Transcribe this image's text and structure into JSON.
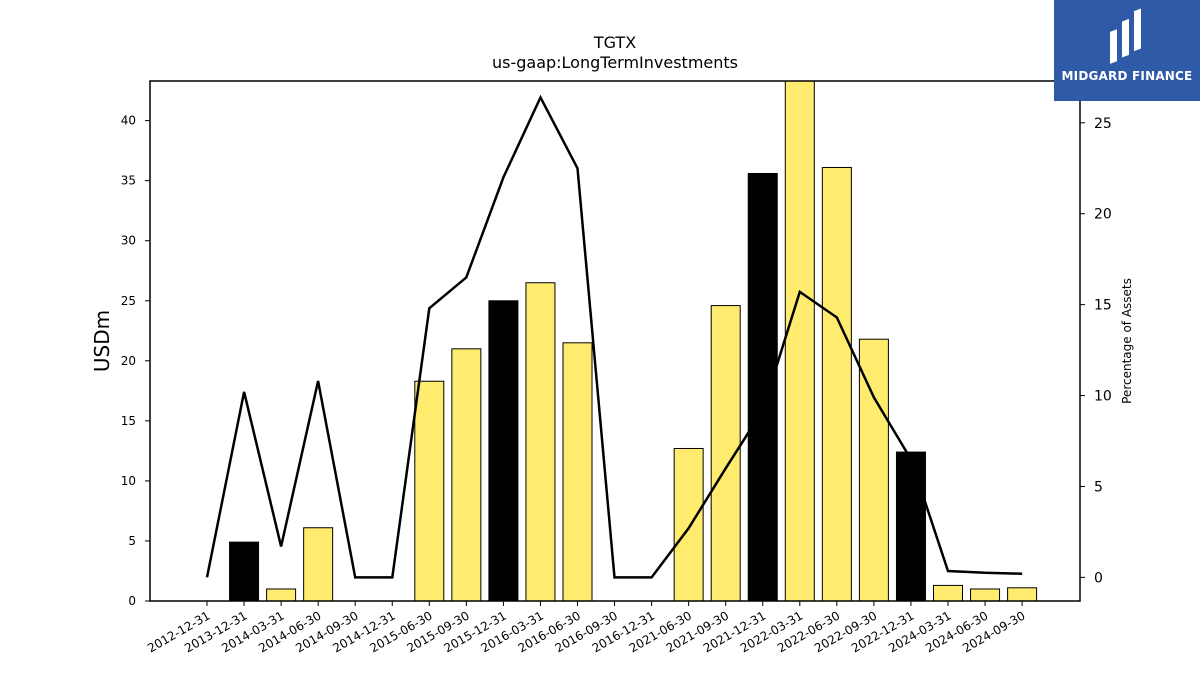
{
  "brand": {
    "name": "MIDGARD FINANCE",
    "color": "#2e5aa8"
  },
  "chart_data": {
    "type": "bar",
    "title": "TGTX",
    "subtitle": "us-gaap:LongTermInvestments",
    "ylabel": "USDm",
    "ylabel_right": "Percentage of Assets",
    "ylim": [
      0,
      43.3
    ],
    "ylim_right": [
      -1.3,
      27.3
    ],
    "yticks": [
      0,
      5,
      10,
      15,
      20,
      25,
      30,
      35,
      40
    ],
    "yticks_right": [
      0,
      5,
      10,
      15,
      20,
      25
    ],
    "categories": [
      "2012-12-31",
      "2013-12-31",
      "2014-03-31",
      "2014-06-30",
      "2014-09-30",
      "2014-12-31",
      "2015-06-30",
      "2015-09-30",
      "2015-12-31",
      "2016-03-31",
      "2016-06-30",
      "2016-09-30",
      "2016-12-31",
      "2021-06-30",
      "2021-09-30",
      "2021-12-31",
      "2022-03-31",
      "2022-06-30",
      "2022-09-30",
      "2022-12-31",
      "2024-03-31",
      "2024-06-30",
      "2024-09-30"
    ],
    "series": [
      {
        "kind": "bar",
        "axis": "left",
        "values": [
          0,
          4.9,
          1.0,
          6.1,
          0,
          0,
          18.3,
          21.0,
          25.0,
          26.5,
          21.5,
          0,
          0,
          12.7,
          24.6,
          35.6,
          43.3,
          36.1,
          21.8,
          12.4,
          1.3,
          1.0,
          1.1
        ],
        "highlight": [
          false,
          true,
          false,
          false,
          false,
          false,
          false,
          false,
          true,
          false,
          false,
          false,
          false,
          false,
          false,
          true,
          false,
          false,
          false,
          true,
          false,
          false,
          false
        ]
      },
      {
        "kind": "line",
        "axis": "right",
        "values": [
          0,
          10.2,
          1.7,
          10.8,
          0,
          0,
          14.8,
          16.5,
          22.0,
          26.4,
          22.5,
          0,
          0,
          2.7,
          6.0,
          9.2,
          15.7,
          14.3,
          9.9,
          6.5,
          0.35,
          0.25,
          0.2
        ]
      }
    ],
    "colors": {
      "bar": "#ffec6e",
      "bar_highlight": "#000000",
      "bar_edge": "#000000",
      "line": "#000000"
    },
    "grid": false
  }
}
